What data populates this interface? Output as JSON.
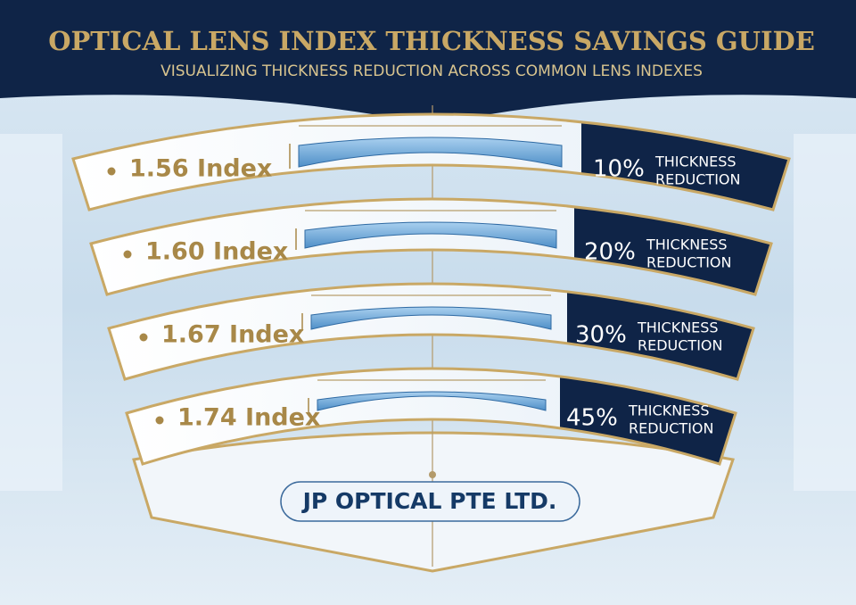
{
  "header": {
    "title": "OPTICAL LENS INDEX THICKNESS SAVINGS GUIDE",
    "subtitle": "VISUALIZING THICKNESS REDUCTION ACROSS COMMON LENS INDEXES"
  },
  "rows": [
    {
      "label": "1.56 Index",
      "percent": "10%",
      "line1": "THICKNESS",
      "line2": "REDUCTION"
    },
    {
      "label": "1.60 Index",
      "percent": "20%",
      "line1": "THICKNESS",
      "line2": "REDUCTION"
    },
    {
      "label": "1.67 Index",
      "percent": "30%",
      "line1": "THICKNESS",
      "line2": "REDUCTION"
    },
    {
      "label": "1.74 Index",
      "percent": "45%",
      "line1": "THICKNESS",
      "line2": "REDUCTION"
    }
  ],
  "brand": "JP OPTICAL PTE LTD."
}
